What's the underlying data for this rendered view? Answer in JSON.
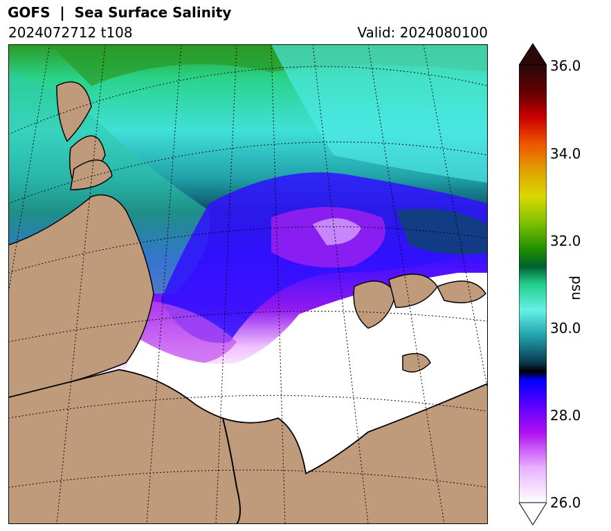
{
  "header": {
    "title": "GOFS  |  Sea Surface Salinity",
    "run": "2024072712 t108",
    "valid": "Valid: 2024080100"
  },
  "colorbar": {
    "unit": "psu",
    "ticks": [
      "36.0",
      "34.0",
      "32.0",
      "30.0",
      "28.0",
      "26.0"
    ],
    "min": 26.0,
    "max": 36.0,
    "extend": "both",
    "colors": {
      "land": "#bf9b7c",
      "ice": "#ffffff",
      "fresh": "#b010f0",
      "mid": "#3a1eff",
      "green": "#22cc88",
      "cyan": "#44e0e0",
      "high": "#cc0000"
    }
  }
}
